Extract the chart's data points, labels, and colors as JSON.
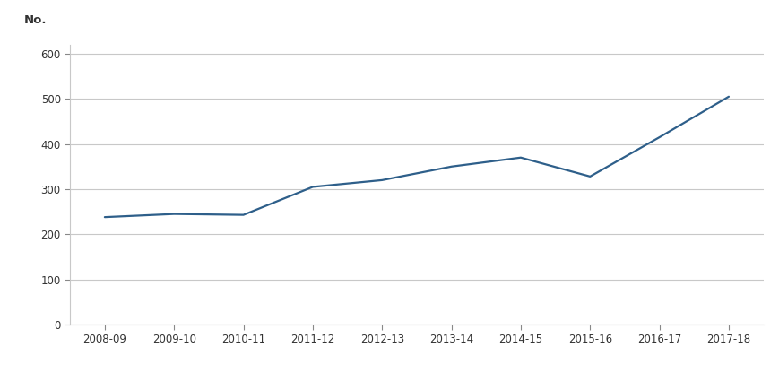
{
  "years": [
    "2008-09",
    "2009-10",
    "2010-11",
    "2011-12",
    "2012-13",
    "2013-14",
    "2014-15",
    "2015-16",
    "2016-17",
    "2017-18"
  ],
  "values": [
    238,
    245,
    243,
    305,
    320,
    350,
    370,
    328,
    415,
    505
  ],
  "line_color": "#2E5F8A",
  "ylabel": "No.",
  "ylim": [
    0,
    620
  ],
  "yticks": [
    0,
    100,
    200,
    300,
    400,
    500,
    600
  ],
  "background_color": "#ffffff",
  "grid_color": "#c8c8c8",
  "tick_label_fontsize": 8.5,
  "ylabel_fontsize": 9.5
}
